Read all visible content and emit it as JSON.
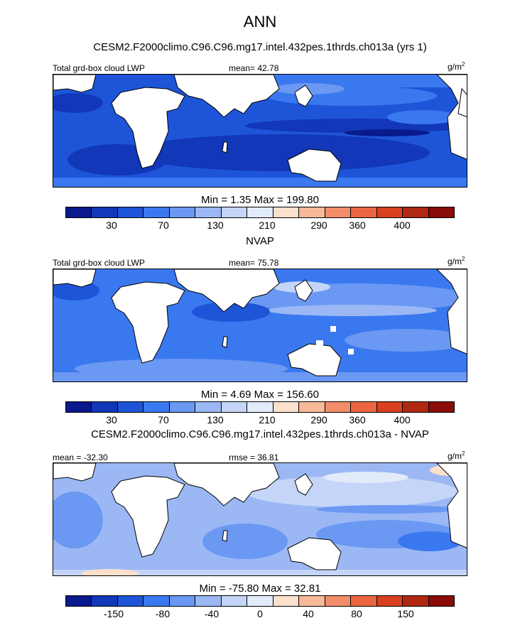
{
  "figure": {
    "title": "ANN",
    "model_subtitle": "CESM2.F2000climo.C96.C96.mg17.intel.432pes.1thrds.ch013a (yrs 1)"
  },
  "panels": [
    {
      "left_label": "Total grd-box cloud LWP",
      "center_label": "mean=  42.78",
      "units": "g/m",
      "units_sup": "2",
      "minmax": "Min =   1.35 Max = 199.80",
      "colorbar_ticks": [
        "30",
        "70",
        "130",
        "210",
        "290",
        "360",
        "400"
      ]
    },
    {
      "section_title": "NVAP",
      "left_label": "Total grd-box cloud LWP",
      "center_label": "mean=  75.78",
      "units": "g/m",
      "units_sup": "2",
      "minmax": "Min =   4.69 Max = 156.60",
      "colorbar_ticks": [
        "30",
        "70",
        "130",
        "210",
        "290",
        "360",
        "400"
      ]
    },
    {
      "section_title": "CESM2.F2000climo.C96.C96.mg17.intel.432pes.1thrds.ch013a - NVAP",
      "left_label": "mean = -32.30",
      "center_label": "rmse =  36.81",
      "units": "g/m",
      "units_sup": "2",
      "minmax": "Min = -75.80 Max =  32.81",
      "colorbar_ticks": [
        "-150",
        "-80",
        "-40",
        "0",
        "40",
        "80",
        "150"
      ]
    }
  ],
  "colors": {
    "palette": [
      "#0a1a8c",
      "#1237b8",
      "#1e55d8",
      "#3a78ef",
      "#6a98f2",
      "#9bb8f5",
      "#c4d5f7",
      "#e2ebfa",
      "#fbe0cc",
      "#f7b99a",
      "#f28d6a",
      "#ec6541",
      "#d8401f",
      "#b02712",
      "#8a0c08"
    ],
    "land": "#ffffff",
    "coast": "#000000"
  }
}
